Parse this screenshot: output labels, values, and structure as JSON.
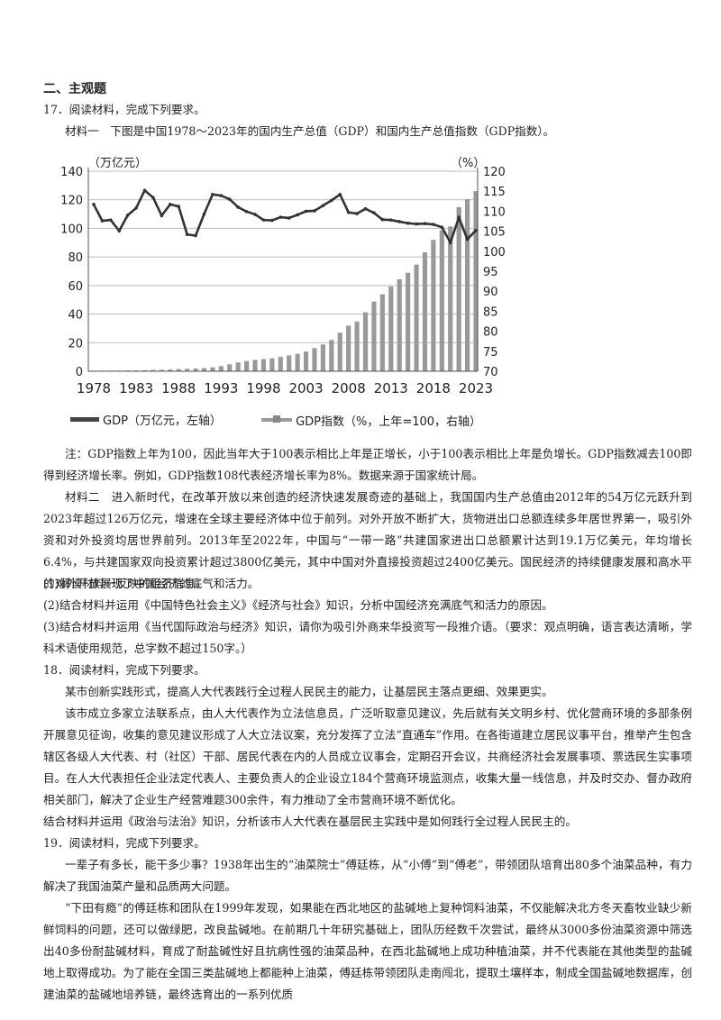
{
  "section_title": "二、主观题",
  "q17": {
    "header": "17．阅读材料，完成下列要求。",
    "material1_intro": "材料一　下图是中国1978～2023年的国内生产总值（GDP）和国内生产总值指数（GDP指数）。",
    "note": "注：GDP指数上年为100，因此当年大于100表示相比上年是正增长，小于100表示相比上年是负增长。GDP指数减去100即得到经济增长率。例如，GDP指数108代表经济增长率为8%。数据来源于国家统计局。",
    "material2": "材料二　进入新时代，在改革开放以来创造的经济快速发展奇迹的基础上，我国国内生产总值由2012年的54万亿元跃升到2023年超过126万亿元，增速在全球主要经济体中位于前列。对外开放不断扩大，货物进出口总额连续多年居世界第一，吸引外资和对外投资均居世界前列。2013年至2022年，中国与“一带一路”共建国家进出口总额累计达到19.1万亿美元，年均增长6.4%，与共建国家双向投资累计超过3800亿美元，其中中国对外直接投资超过2400亿美元。国民经济的持续健康发展和高水平的对外开放展现了中国经济的底气和活力。",
    "task1": "(1)解读材料一反映的经济信息。",
    "task2": "(2)结合材料并运用《中国特色社会主义》《经济与社会》知识，分析中国经济充满底气和活力的原因。",
    "task3": "(3)结合材料并运用《当代国际政治与经济》知识，请你为吸引外商来华投资写一段推介语。（要求：观点明确，语言表达清晰，学科术语使用规范，总字数不超过150字。）"
  },
  "q18": {
    "header": "18．阅读材料，完成下列要求。",
    "p1": "某市创新实践形式，提高人大代表践行全过程人民民主的能力，让基层民主落点更细、效果更实。",
    "p2": "该市成立多家立法联系点，由人大代表作为立法信息员，广泛听取意见建议，先后就有关文明乡村、优化营商环境的多部条例开展意见征询，收集的意见建议形成了人大立法议案，充分发挥了立法“直通车”作用。在各街道建立居民议事平台，推举产生包含辖区各级人大代表、村（社区）干部、居民代表在内的人员成立议事会，定期召开会议，共商经济社会发展事项、票选民生实事项目。在人大代表担任企业法定代表人、主要负责人的企业设立184个营商环境监测点，收集大量一线信息，并及时交办、督办政府相关部门，解决了企业生产经营难题300余件，有力推动了全市营商环境不断优化。",
    "task": "结合材料并运用《政治与法治》知识，分析该市人大代表在基层民主实践中是如何践行全过程人民民主的。"
  },
  "q19": {
    "header": "19．阅读材料，完成下列要求。",
    "p1": "一辈子有多长，能干多少事？1938年出生的“油菜院士”傅廷栋，从“小傅”到“傅老”，带领团队培育出80多个油菜品种，有力解决了我国油菜产量和品质两大问题。",
    "p2": "“下田有瘾”的傅廷栋和团队在1999年发现，如果能在西北地区的盐碱地上复种饲料油菜，不仅能解决北方冬天畜牧业缺少新鲜饲料的问题，还可以做绿肥，改良盐碱地。在前期几十年研究基础上，团队历经数千次尝试，最终从3000多份油菜资源中筛选出40多份耐盐碱材料，育成了耐盐碱性好且抗病性强的油菜品种，在西北盐碱地上成功种植油菜，并不代表能在其他类型的盐碱地上取得成功。为了能在全国三类盐碱地上都能种上油菜，傅廷栋带领团队走南闯北，提取土壤样本，制成全国盐碱地数据库，创建油菜的盐碱地培养链，最终选育出的一系列优质"
  },
  "chart_data": {
    "type": "bar+line",
    "left_axis_label": "（万亿元）",
    "right_axis_label": "（%）",
    "left_ylim": [
      0,
      140
    ],
    "left_ticks": [
      "0",
      "20",
      "40",
      "60",
      "80",
      "100",
      "120",
      "140"
    ],
    "right_ylim": [
      70,
      120
    ],
    "right_ticks": [
      "70",
      "75",
      "80",
      "85",
      "90",
      "95",
      "100",
      "105",
      "110",
      "115",
      "120"
    ],
    "x_tick_labels": [
      "1978",
      "1983",
      "1988",
      "1993",
      "1998",
      "2003",
      "2008",
      "2013",
      "2018",
      "2023"
    ],
    "grid": true,
    "colors": {
      "bars": "#999999",
      "index_line": "#333333"
    },
    "legend": [
      "GDP（万亿元，左轴）",
      "GDP指数（%，上年=100，右轴）"
    ],
    "years": [
      1978,
      1979,
      1980,
      1981,
      1982,
      1983,
      1984,
      1985,
      1986,
      1987,
      1988,
      1989,
      1990,
      1991,
      1992,
      1993,
      1994,
      1995,
      1996,
      1997,
      1998,
      1999,
      2000,
      2001,
      2002,
      2003,
      2004,
      2005,
      2006,
      2007,
      2008,
      2009,
      2010,
      2011,
      2012,
      2013,
      2014,
      2015,
      2016,
      2017,
      2018,
      2019,
      2020,
      2021,
      2022,
      2023
    ],
    "series": [
      {
        "name": "GDP（万亿元，左轴）",
        "axis": "left",
        "values": [
          0.37,
          0.41,
          0.46,
          0.49,
          0.54,
          0.6,
          0.73,
          0.91,
          1.04,
          1.22,
          1.52,
          1.72,
          1.89,
          2.2,
          2.7,
          3.57,
          4.86,
          6.13,
          7.18,
          7.97,
          8.52,
          9.06,
          10.03,
          11.09,
          12.17,
          13.74,
          16.18,
          18.73,
          21.94,
          27.0,
          31.92,
          34.85,
          41.21,
          48.79,
          53.86,
          59.3,
          64.36,
          68.89,
          74.64,
          83.2,
          91.93,
          98.65,
          101.36,
          114.92,
          120.47,
          126.06
        ]
      },
      {
        "name": "GDP指数（%，上年=100，右轴）",
        "axis": "right",
        "values": [
          111.7,
          107.6,
          107.8,
          105.1,
          109.0,
          110.8,
          115.2,
          113.4,
          108.9,
          111.7,
          111.2,
          104.2,
          103.9,
          109.3,
          114.2,
          113.9,
          113.0,
          111.0,
          109.9,
          109.2,
          107.8,
          107.7,
          108.5,
          108.3,
          109.1,
          110.0,
          110.1,
          111.4,
          112.7,
          114.2,
          109.7,
          109.4,
          110.6,
          109.6,
          107.9,
          107.8,
          107.4,
          107.0,
          106.8,
          106.9,
          106.7,
          106.0,
          102.2,
          108.4,
          103.0,
          105.2
        ]
      }
    ]
  }
}
